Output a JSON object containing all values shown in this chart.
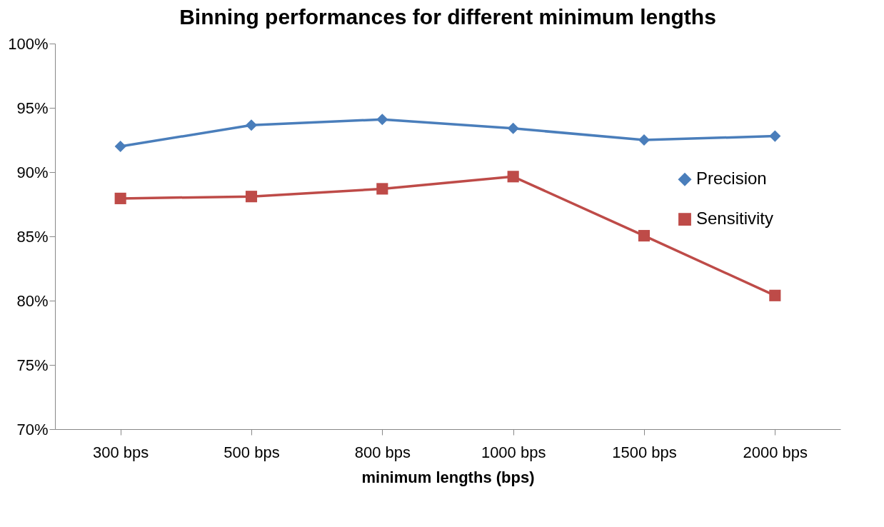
{
  "chart_data": {
    "type": "line",
    "title": "Binning performances for different minimum lengths",
    "xlabel": "minimum lengths (bps)",
    "categories": [
      "300 bps",
      "500 bps",
      "800 bps",
      "1000 bps",
      "1500 bps",
      "2000 bps"
    ],
    "series": [
      {
        "name": "Precision",
        "color": "#4a7ebb",
        "marker": "diamond",
        "values": [
          92.0,
          93.65,
          94.1,
          93.4,
          92.5,
          92.8
        ]
      },
      {
        "name": "Sensitivity",
        "color": "#be4b48",
        "marker": "square",
        "values": [
          87.95,
          88.1,
          88.7,
          89.65,
          85.05,
          80.4
        ]
      }
    ],
    "ylim": [
      70,
      100
    ],
    "yticks": [
      {
        "value": 70,
        "label": "70%"
      },
      {
        "value": 75,
        "label": "75%"
      },
      {
        "value": 80,
        "label": "80%"
      },
      {
        "value": 85,
        "label": "85%"
      },
      {
        "value": 90,
        "label": "90%"
      },
      {
        "value": 95,
        "label": "95%"
      },
      {
        "value": 100,
        "label": "100%"
      }
    ],
    "grid": false,
    "legend": "right",
    "line_style": "solid"
  }
}
